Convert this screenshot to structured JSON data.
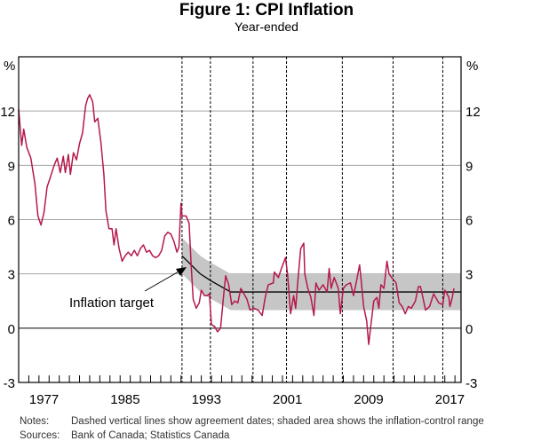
{
  "chart_data": {
    "type": "line",
    "title": "Figure 1: CPI Inflation",
    "subtitle": "Year-ended",
    "ylabel_left": "%",
    "ylabel_right": "%",
    "ylim": [
      -3,
      15
    ],
    "xlim": [
      1975,
      2018.6
    ],
    "yticks": [
      "-3",
      "0",
      "3",
      "6",
      "9",
      "12"
    ],
    "ytick_values": [
      -3,
      0,
      3,
      6,
      9,
      12
    ],
    "xticks": [
      "1977",
      "1985",
      "1993",
      "2001",
      "2009",
      "2017"
    ],
    "xtick_values": [
      1977.5,
      1985.5,
      1993.5,
      2001.5,
      2009.5,
      2017.5
    ],
    "grid": true,
    "agreement_dates": [
      1991.1,
      1993.9,
      1998.1,
      2001.4,
      2006.9,
      2011.9,
      2016.8
    ],
    "target": {
      "label": "Inflation target",
      "x": [
        1991.1,
        1992.9,
        1994.0,
        1995.9,
        2018.6
      ],
      "y": [
        4.0,
        3.0,
        2.6,
        2.0,
        2.0
      ],
      "band": 1
    },
    "series": [
      {
        "name": "CPI inflation",
        "color": "#b5194a",
        "x": [
          1975.0,
          1975.3,
          1975.5,
          1975.8,
          1976.2,
          1976.6,
          1976.9,
          1977.2,
          1977.5,
          1977.8,
          1978.1,
          1978.5,
          1978.8,
          1979.1,
          1979.4,
          1979.6,
          1979.9,
          1980.1,
          1980.4,
          1980.7,
          1981.0,
          1981.3,
          1981.6,
          1981.8,
          1982.0,
          1982.3,
          1982.5,
          1982.8,
          1983.1,
          1983.4,
          1983.6,
          1983.9,
          1984.2,
          1984.4,
          1984.6,
          1984.9,
          1985.2,
          1985.5,
          1985.8,
          1986.1,
          1986.4,
          1986.7,
          1987.0,
          1987.3,
          1987.6,
          1987.9,
          1988.2,
          1988.5,
          1988.8,
          1989.1,
          1989.4,
          1989.7,
          1990.0,
          1990.3,
          1990.6,
          1990.8,
          1991.0,
          1991.1,
          1991.5,
          1991.8,
          1992.0,
          1992.2,
          1992.5,
          1992.8,
          1993.0,
          1993.3,
          1993.6,
          1993.8,
          1994.0,
          1994.3,
          1994.6,
          1994.9,
          1995.2,
          1995.4,
          1995.7,
          1996.0,
          1996.3,
          1996.6,
          1996.9,
          1997.2,
          1997.5,
          1997.8,
          1998.2,
          1998.6,
          1999.0,
          1999.3,
          1999.6,
          2000.1,
          2000.2,
          2000.6,
          2000.9,
          2001.3,
          2001.5,
          2001.8,
          2002.1,
          2002.3,
          2002.5,
          2002.8,
          2003.1,
          2003.2,
          2003.5,
          2003.8,
          2004.1,
          2004.3,
          2004.6,
          2005.0,
          2005.4,
          2005.6,
          2005.8,
          2006.1,
          2006.5,
          2006.7,
          2007.0,
          2007.3,
          2007.7,
          2008.0,
          2008.3,
          2008.6,
          2008.8,
          2009.0,
          2009.3,
          2009.5,
          2009.7,
          2010.0,
          2010.3,
          2010.5,
          2010.7,
          2011.0,
          2011.3,
          2011.5,
          2011.9,
          2012.2,
          2012.5,
          2012.8,
          2013.1,
          2013.4,
          2013.7,
          2014.1,
          2014.4,
          2014.6,
          2014.8,
          2015.1,
          2015.5,
          2015.9,
          2016.4,
          2016.8,
          2017.0,
          2017.4,
          2017.5,
          2017.7,
          2017.9
        ],
        "y": [
          12.1,
          10.1,
          11.0,
          10.0,
          9.4,
          8.0,
          6.2,
          5.7,
          6.4,
          7.8,
          8.3,
          9.0,
          9.4,
          8.6,
          9.5,
          8.6,
          9.6,
          8.5,
          9.7,
          9.3,
          10.2,
          10.8,
          12.3,
          12.7,
          12.9,
          12.5,
          11.4,
          11.6,
          10.3,
          8.5,
          6.5,
          5.5,
          5.5,
          4.6,
          5.5,
          4.4,
          3.7,
          4.0,
          4.2,
          4.0,
          4.3,
          4.0,
          4.4,
          4.6,
          4.2,
          4.3,
          4.0,
          3.9,
          4.0,
          4.3,
          5.1,
          5.3,
          5.2,
          4.8,
          4.2,
          4.5,
          6.9,
          6.2,
          6.2,
          5.8,
          3.5,
          1.6,
          1.1,
          1.4,
          2.1,
          1.8,
          1.8,
          1.9,
          0.2,
          0.1,
          -0.2,
          0.0,
          1.8,
          2.9,
          2.4,
          1.3,
          1.5,
          1.4,
          2.2,
          1.9,
          1.6,
          1.0,
          1.1,
          1.0,
          0.7,
          1.7,
          2.4,
          2.5,
          3.1,
          2.8,
          3.3,
          3.9,
          3.0,
          0.8,
          1.8,
          1.1,
          2.5,
          4.4,
          4.7,
          3.0,
          2.2,
          1.7,
          0.7,
          2.5,
          2.1,
          2.4,
          2.0,
          3.3,
          2.2,
          2.8,
          2.2,
          0.8,
          2.2,
          2.4,
          2.5,
          1.8,
          2.6,
          3.5,
          2.4,
          1.2,
          0.4,
          -0.9,
          0.1,
          1.5,
          1.7,
          1.1,
          2.4,
          2.2,
          3.7,
          3.0,
          2.7,
          2.5,
          1.4,
          1.2,
          0.8,
          1.2,
          1.1,
          1.5,
          2.3,
          2.3,
          1.8,
          1.0,
          1.2,
          1.9,
          1.4,
          1.3,
          2.1,
          1.7,
          1.2,
          1.6,
          2.2
        ]
      }
    ],
    "notes_label": "Notes:",
    "notes": "Dashed vertical lines show agreement dates; shaded area shows the inflation-control range",
    "sources_label": "Sources:",
    "sources": "Bank of Canada; Statistics Canada"
  }
}
